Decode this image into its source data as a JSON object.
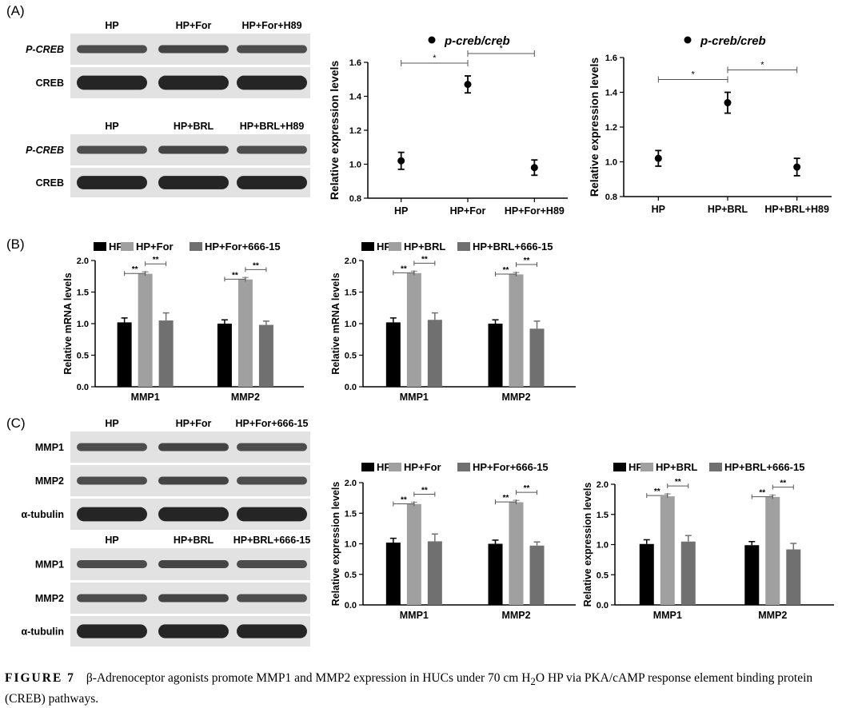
{
  "panels": {
    "A": "(A)",
    "B": "(B)",
    "C": "(C)"
  },
  "blotA1": {
    "lanes": [
      "HP",
      "HP+For",
      "HP+For+H89"
    ],
    "rows": [
      "P-CREB",
      "CREB"
    ],
    "row_styles": [
      "italic",
      "normal"
    ]
  },
  "blotA2": {
    "lanes": [
      "HP",
      "HP+BRL",
      "HP+BRL+H89"
    ],
    "rows": [
      "P-CREB",
      "CREB"
    ],
    "row_styles": [
      "italic",
      "normal"
    ]
  },
  "blotC1": {
    "lanes": [
      "HP",
      "HP+For",
      "HP+For+666-15"
    ],
    "rows": [
      "MMP1",
      "MMP2",
      "α-tubulin"
    ],
    "row_styles": [
      "normal",
      "normal",
      "normal"
    ]
  },
  "blotC2": {
    "lanes": [
      "HP",
      "HP+BRL",
      "HP+BRL+666-15"
    ],
    "rows": [
      "MMP1",
      "MMP2",
      "α-tubulin"
    ],
    "row_styles": [
      "normal",
      "normal",
      "normal"
    ]
  },
  "colors": {
    "hp": "#000000",
    "agonist": "#a0a0a0",
    "inhibitor": "#707070"
  },
  "chart_data": [
    {
      "id": "A1",
      "type": "scatter",
      "legend": "p-creb/creb",
      "categories": [
        "HP",
        "HP+For",
        "HP+For+H89"
      ],
      "values": [
        1.02,
        1.47,
        0.98
      ],
      "errors": [
        0.05,
        0.05,
        0.045
      ],
      "ylabel": "Relative expression levels",
      "ylim": [
        0.8,
        1.6
      ],
      "yticks": [
        "0.8",
        "1.0",
        "1.2",
        "1.4",
        "1.6"
      ],
      "significance": [
        {
          "from": 0,
          "to": 1,
          "label": "*"
        },
        {
          "from": 1,
          "to": 2,
          "label": "*"
        }
      ]
    },
    {
      "id": "A2",
      "type": "scatter",
      "legend": "p-creb/creb",
      "categories": [
        "HP",
        "HP+BRL",
        "HP+BRL+H89"
      ],
      "values": [
        1.02,
        1.34,
        0.97
      ],
      "errors": [
        0.045,
        0.06,
        0.05
      ],
      "ylabel": "Relative expression levels",
      "ylim": [
        0.8,
        1.6
      ],
      "yticks": [
        "0.8",
        "1.0",
        "1.2",
        "1.4",
        "1.6"
      ],
      "significance": [
        {
          "from": 0,
          "to": 1,
          "label": "*"
        },
        {
          "from": 1,
          "to": 2,
          "label": "*"
        }
      ]
    },
    {
      "id": "B1",
      "type": "bar",
      "categories": [
        "MMP1",
        "MMP2"
      ],
      "series": [
        {
          "name": "HP",
          "values": [
            1.02,
            1.0
          ],
          "errors": [
            0.07,
            0.06
          ]
        },
        {
          "name": "HP+For",
          "values": [
            1.79,
            1.7
          ],
          "errors": [
            0.03,
            0.03
          ]
        },
        {
          "name": "HP+For+666-15",
          "values": [
            1.05,
            0.98
          ],
          "errors": [
            0.12,
            0.06
          ]
        }
      ],
      "ylabel": "Relative mRNA levels",
      "ylim": [
        0,
        2.0
      ],
      "yticks": [
        "0.0",
        "0.5",
        "1.0",
        "1.5",
        "2.0"
      ],
      "sig_label": "**"
    },
    {
      "id": "B2",
      "type": "bar",
      "categories": [
        "MMP1",
        "MMP2"
      ],
      "series": [
        {
          "name": "HP",
          "values": [
            1.02,
            1.0
          ],
          "errors": [
            0.07,
            0.06
          ]
        },
        {
          "name": "HP+BRL",
          "values": [
            1.8,
            1.78
          ],
          "errors": [
            0.03,
            0.03
          ]
        },
        {
          "name": "HP+BRL+666-15",
          "values": [
            1.06,
            0.92
          ],
          "errors": [
            0.11,
            0.12
          ]
        }
      ],
      "ylabel": "Relative mRNA levels",
      "ylim": [
        0,
        2.0
      ],
      "yticks": [
        "0.0",
        "0.5",
        "1.0",
        "1.5",
        "2.0"
      ],
      "sig_label": "**"
    },
    {
      "id": "C1",
      "type": "bar",
      "categories": [
        "MMP1",
        "MMP2"
      ],
      "series": [
        {
          "name": "HP",
          "values": [
            1.02,
            1.0
          ],
          "errors": [
            0.07,
            0.06
          ]
        },
        {
          "name": "HP+For",
          "values": [
            1.65,
            1.68
          ],
          "errors": [
            0.03,
            0.03
          ]
        },
        {
          "name": "HP+For+666-15",
          "values": [
            1.04,
            0.97
          ],
          "errors": [
            0.12,
            0.06
          ]
        }
      ],
      "ylabel": "Relative expression levels",
      "ylim": [
        0,
        2.0
      ],
      "yticks": [
        "0.0",
        "0.5",
        "1.0",
        "1.5",
        "2.0"
      ],
      "sig_label": "**"
    },
    {
      "id": "C2",
      "type": "bar",
      "categories": [
        "MMP1",
        "MMP2"
      ],
      "series": [
        {
          "name": "HP",
          "values": [
            1.01,
            0.99
          ],
          "errors": [
            0.07,
            0.06
          ]
        },
        {
          "name": "HP+BRL",
          "values": [
            1.8,
            1.79
          ],
          "errors": [
            0.04,
            0.03
          ]
        },
        {
          "name": "HP+BRL+666-15",
          "values": [
            1.05,
            0.92
          ],
          "errors": [
            0.1,
            0.1
          ]
        }
      ],
      "ylabel": "Relative expression levels",
      "ylim": [
        0,
        2.0
      ],
      "yticks": [
        "0.0",
        "0.5",
        "1.0",
        "1.5",
        "2.0"
      ],
      "sig_label": "**"
    }
  ],
  "caption": {
    "label": "FIGURE 7",
    "text_before": "β-Adrenoceptor agonists promote MMP1 and MMP2 expression in HUCs under 70 cm H",
    "sub": "2",
    "text_after": "O HP via PKA/cAMP response element binding protein (CREB) pathways."
  }
}
